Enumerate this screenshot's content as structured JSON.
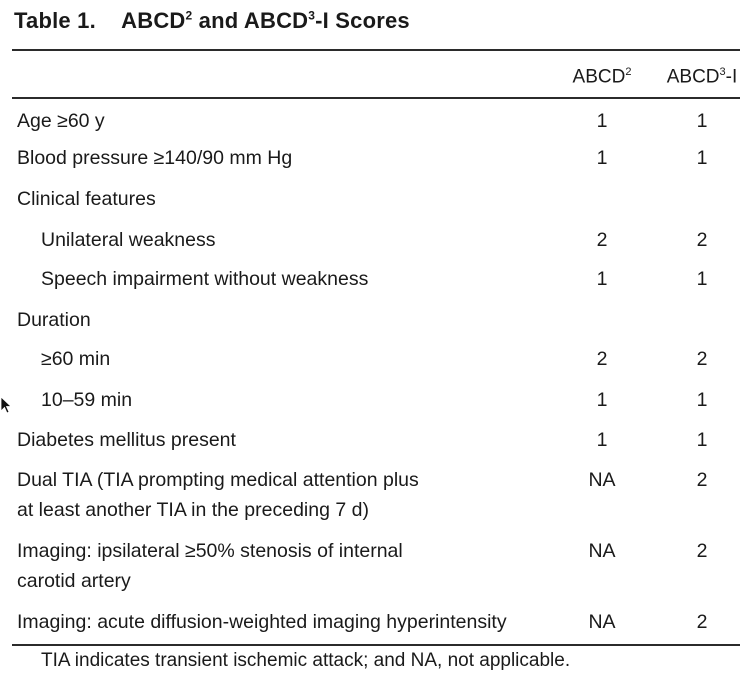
{
  "table": {
    "title_prefix": "Table 1.",
    "title_main": "ABCD",
    "title_sup1": "2",
    "title_and": " and ABCD",
    "title_sup2": "3",
    "title_tail": "-I Scores",
    "columns": [
      {
        "base": "ABCD",
        "sup": "2",
        "tail": ""
      },
      {
        "base": "ABCD",
        "sup": "3",
        "tail": "-I"
      }
    ],
    "rows": [
      {
        "label": "Age ≥60 y",
        "abcd2": "1",
        "abcd3i": "1"
      },
      {
        "label": "Blood pressure ≥140/90 mm Hg",
        "abcd2": "1",
        "abcd3i": "1"
      },
      {
        "label": "Clinical features",
        "abcd2": "",
        "abcd3i": ""
      },
      {
        "label": "Unilateral weakness",
        "abcd2": "2",
        "abcd3i": "2"
      },
      {
        "label": "Speech impairment without weakness",
        "abcd2": "1",
        "abcd3i": "1"
      },
      {
        "label": "Duration",
        "abcd2": "",
        "abcd3i": ""
      },
      {
        "label": "≥60 min",
        "abcd2": "2",
        "abcd3i": "2"
      },
      {
        "label": "10–59 min",
        "abcd2": "1",
        "abcd3i": "1"
      },
      {
        "label": "Diabetes mellitus present",
        "abcd2": "1",
        "abcd3i": "1"
      },
      {
        "label_line1": "Dual TIA (TIA prompting medical attention plus",
        "label_line2": "at least another TIA in the preceding 7 d)",
        "abcd2": "NA",
        "abcd3i": "2"
      },
      {
        "label_line1": "Imaging: ipsilateral ≥50% stenosis of internal",
        "label_line2": "carotid artery",
        "abcd2": "NA",
        "abcd3i": "2"
      },
      {
        "label": "Imaging: acute diffusion-weighted imaging hyperintensity",
        "abcd2": "NA",
        "abcd3i": "2"
      }
    ],
    "footnote": "TIA indicates transient ischemic attack; and NA, not applicable."
  }
}
